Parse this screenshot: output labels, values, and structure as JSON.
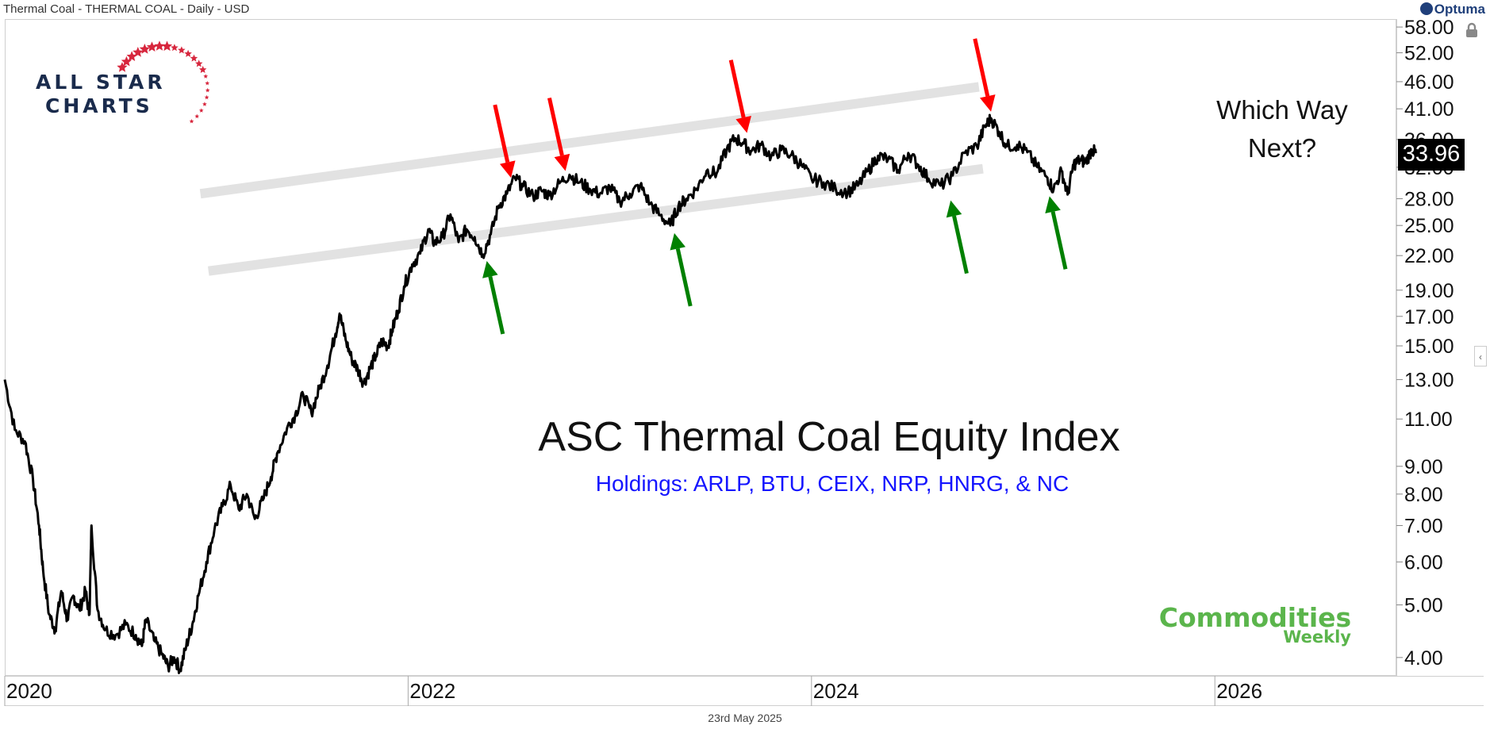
{
  "header": {
    "source_title": "Thermal Coal - THERMAL COAL - Daily - USD",
    "brand": "Optuma"
  },
  "logo": {
    "line1": "ALL STAR",
    "line2": "CHARTS"
  },
  "watermark": {
    "line1": "Commodities",
    "line2": "Weekly"
  },
  "footer": {
    "date": "23rd May 2025"
  },
  "chart_data": {
    "type": "line",
    "title": "ASC Thermal Coal Equity Index",
    "subtitle": "Holdings: ARLP, BTU, CEIX, NRP, HNRG, & NC",
    "annotation": "Which Way Next?",
    "y_scale": "log",
    "ylim": [
      3.7,
      60
    ],
    "y_ticks": [
      4,
      5,
      6,
      7,
      8,
      9,
      11,
      13,
      15,
      17,
      19,
      22,
      25,
      28,
      32,
      36,
      41,
      46,
      52,
      58
    ],
    "y_tick_labels": [
      "4.00",
      "5.00",
      "6.00",
      "7.00",
      "8.00",
      "9.00",
      "11.00",
      "13.00",
      "15.00",
      "17.00",
      "19.00",
      "22.00",
      "25.00",
      "28.00",
      "32.00",
      "36.00",
      "41.00",
      "46.00",
      "52.00",
      "58.00"
    ],
    "xlim": [
      2020.0,
      2026.9
    ],
    "x_ticks": [
      2020,
      2022,
      2024,
      2026
    ],
    "x_tick_labels": [
      "2020",
      "2022",
      "2024",
      "2026"
    ],
    "last_value_label": "33.96",
    "series": [
      {
        "values": [
          [
            2020.0,
            13.0
          ],
          [
            2020.05,
            10.5
          ],
          [
            2020.1,
            10.0
          ],
          [
            2020.14,
            8.5
          ],
          [
            2020.17,
            7.0
          ],
          [
            2020.19,
            5.8
          ],
          [
            2020.22,
            4.8
          ],
          [
            2020.25,
            4.5
          ],
          [
            2020.28,
            5.3
          ],
          [
            2020.31,
            4.7
          ],
          [
            2020.34,
            5.2
          ],
          [
            2020.37,
            4.9
          ],
          [
            2020.4,
            5.3
          ],
          [
            2020.42,
            4.8
          ],
          [
            2020.43,
            7.0
          ],
          [
            2020.46,
            4.9
          ],
          [
            2020.5,
            4.5
          ],
          [
            2020.55,
            4.4
          ],
          [
            2020.6,
            4.6
          ],
          [
            2020.65,
            4.4
          ],
          [
            2020.68,
            4.2
          ],
          [
            2020.7,
            4.7
          ],
          [
            2020.74,
            4.3
          ],
          [
            2020.78,
            4.05
          ],
          [
            2020.81,
            3.85
          ],
          [
            2020.84,
            4.0
          ],
          [
            2020.87,
            3.8
          ],
          [
            2020.9,
            4.2
          ],
          [
            2020.93,
            4.6
          ],
          [
            2020.96,
            5.2
          ],
          [
            2021.0,
            6.0
          ],
          [
            2021.04,
            6.9
          ],
          [
            2021.08,
            7.6
          ],
          [
            2021.12,
            8.3
          ],
          [
            2021.16,
            7.5
          ],
          [
            2021.2,
            8.0
          ],
          [
            2021.24,
            7.2
          ],
          [
            2021.28,
            7.8
          ],
          [
            2021.32,
            8.6
          ],
          [
            2021.35,
            9.5
          ],
          [
            2021.4,
            10.6
          ],
          [
            2021.44,
            11.2
          ],
          [
            2021.48,
            12.2
          ],
          [
            2021.52,
            11.3
          ],
          [
            2021.56,
            12.5
          ],
          [
            2021.6,
            13.8
          ],
          [
            2021.64,
            15.8
          ],
          [
            2021.66,
            17.2
          ],
          [
            2021.69,
            15.4
          ],
          [
            2021.72,
            14.2
          ],
          [
            2021.75,
            13.6
          ],
          [
            2021.78,
            12.8
          ],
          [
            2021.81,
            13.6
          ],
          [
            2021.84,
            14.4
          ],
          [
            2021.87,
            15.3
          ],
          [
            2021.9,
            15.0
          ],
          [
            2021.92,
            16.0
          ],
          [
            2021.95,
            17.4
          ],
          [
            2021.98,
            19.3
          ],
          [
            2022.02,
            21.2
          ],
          [
            2022.06,
            22.2
          ],
          [
            2022.1,
            24.6
          ],
          [
            2022.13,
            23.2
          ],
          [
            2022.17,
            23.8
          ],
          [
            2022.21,
            26.2
          ],
          [
            2022.25,
            23.3
          ],
          [
            2022.29,
            24.6
          ],
          [
            2022.33,
            23.8
          ],
          [
            2022.37,
            22.1
          ],
          [
            2022.41,
            24.1
          ],
          [
            2022.45,
            27.2
          ],
          [
            2022.49,
            28.6
          ],
          [
            2022.53,
            30.6
          ],
          [
            2022.57,
            29.5
          ],
          [
            2022.62,
            28.3
          ],
          [
            2022.66,
            29.0
          ],
          [
            2022.7,
            28.4
          ],
          [
            2022.75,
            29.9
          ],
          [
            2022.8,
            31.0
          ],
          [
            2022.85,
            30.0
          ],
          [
            2022.9,
            29.2
          ],
          [
            2022.95,
            28.6
          ],
          [
            2023.0,
            29.4
          ],
          [
            2023.05,
            27.7
          ],
          [
            2023.1,
            28.6
          ],
          [
            2023.15,
            29.6
          ],
          [
            2023.2,
            27.4
          ],
          [
            2023.25,
            26.1
          ],
          [
            2023.3,
            25.0
          ],
          [
            2023.34,
            27.1
          ],
          [
            2023.38,
            28.0
          ],
          [
            2023.43,
            29.2
          ],
          [
            2023.48,
            31.5
          ],
          [
            2023.53,
            31.2
          ],
          [
            2023.58,
            34.5
          ],
          [
            2023.62,
            36.2
          ],
          [
            2023.66,
            35.5
          ],
          [
            2023.7,
            34.3
          ],
          [
            2023.75,
            35.2
          ],
          [
            2023.8,
            33.5
          ],
          [
            2023.85,
            34.4
          ],
          [
            2023.9,
            33.7
          ],
          [
            2023.95,
            32.3
          ],
          [
            2024.0,
            30.5
          ],
          [
            2024.06,
            30.0
          ],
          [
            2024.12,
            29.2
          ],
          [
            2024.18,
            28.8
          ],
          [
            2024.23,
            29.6
          ],
          [
            2024.28,
            31.5
          ],
          [
            2024.33,
            33.6
          ],
          [
            2024.38,
            33.1
          ],
          [
            2024.43,
            31.6
          ],
          [
            2024.48,
            34.0
          ],
          [
            2024.53,
            32.3
          ],
          [
            2024.58,
            30.5
          ],
          [
            2024.64,
            29.6
          ],
          [
            2024.7,
            30.9
          ],
          [
            2024.76,
            34.0
          ],
          [
            2024.82,
            35.0
          ],
          [
            2024.86,
            38.0
          ],
          [
            2024.89,
            39.4
          ],
          [
            2024.93,
            37.2
          ],
          [
            2024.97,
            35.0
          ],
          [
            2025.02,
            35.2
          ],
          [
            2025.07,
            34.1
          ],
          [
            2025.12,
            32.0
          ],
          [
            2025.17,
            30.6
          ],
          [
            2025.2,
            29.1
          ],
          [
            2025.24,
            31.5
          ],
          [
            2025.27,
            28.5
          ],
          [
            2025.3,
            32.4
          ],
          [
            2025.33,
            33.0
          ],
          [
            2025.36,
            32.7
          ],
          [
            2025.39,
            34.5
          ],
          [
            2025.41,
            33.96
          ]
        ]
      }
    ],
    "trendlines": [
      {
        "role": "resistance",
        "from": [
          2020.97,
          28.6
        ],
        "to": [
          2024.83,
          45.0
        ]
      },
      {
        "role": "support",
        "from": [
          2021.01,
          20.6
        ],
        "to": [
          2024.85,
          31.8
        ]
      }
    ],
    "markers": [
      {
        "color": "#ff0000",
        "direction": "down",
        "at": [
          2022.51,
          30.6
        ]
      },
      {
        "color": "#ff0000",
        "direction": "down",
        "at": [
          2022.78,
          31.5
        ]
      },
      {
        "color": "#ff0000",
        "direction": "down",
        "at": [
          2023.68,
          37.0
        ]
      },
      {
        "color": "#ff0000",
        "direction": "down",
        "at": [
          2024.89,
          40.5
        ]
      },
      {
        "color": "#008000",
        "direction": "up",
        "at": [
          2022.39,
          21.5
        ]
      },
      {
        "color": "#008000",
        "direction": "up",
        "at": [
          2023.32,
          24.2
        ]
      },
      {
        "color": "#008000",
        "direction": "up",
        "at": [
          2024.69,
          27.8
        ]
      },
      {
        "color": "#008000",
        "direction": "up",
        "at": [
          2025.18,
          28.3
        ]
      }
    ],
    "colors": {
      "line": "#000000",
      "channel": "#e2e2e2",
      "subtitle": "#1515ff",
      "logo_navy": "#1a2b4c",
      "logo_red": "#d7263d",
      "watermark_green": "#5bb54c"
    }
  }
}
